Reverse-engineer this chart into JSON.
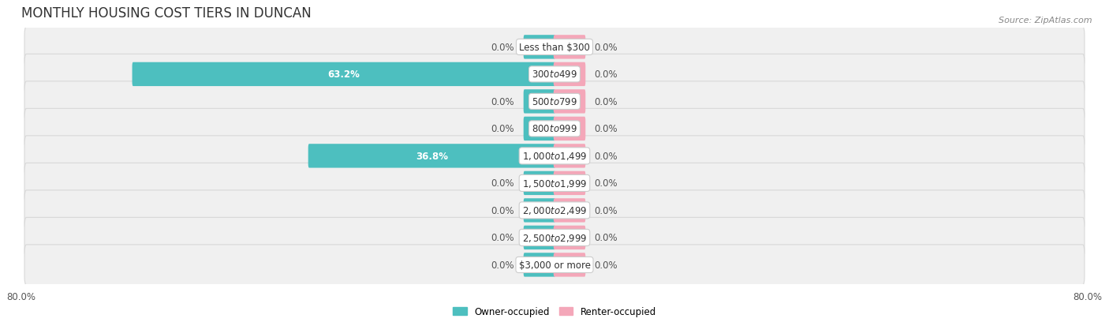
{
  "title": "MONTHLY HOUSING COST TIERS IN DUNCAN",
  "source": "Source: ZipAtlas.com",
  "categories": [
    "Less than $300",
    "$300 to $499",
    "$500 to $799",
    "$800 to $999",
    "$1,000 to $1,499",
    "$1,500 to $1,999",
    "$2,000 to $2,499",
    "$2,500 to $2,999",
    "$3,000 or more"
  ],
  "owner_values": [
    0.0,
    63.2,
    0.0,
    0.0,
    36.8,
    0.0,
    0.0,
    0.0,
    0.0
  ],
  "renter_values": [
    0.0,
    0.0,
    0.0,
    0.0,
    0.0,
    0.0,
    0.0,
    0.0,
    0.0
  ],
  "owner_color": "#4DBFBF",
  "renter_color": "#F4A7B9",
  "row_bg_color": "#f0f0f0",
  "row_border_color": "#d8d8d8",
  "axis_limit": 80.0,
  "min_bar_width": 4.5,
  "legend_owner": "Owner-occupied",
  "legend_renter": "Renter-occupied",
  "title_fontsize": 12,
  "label_fontsize": 8.5,
  "category_fontsize": 8.5,
  "source_fontsize": 8
}
